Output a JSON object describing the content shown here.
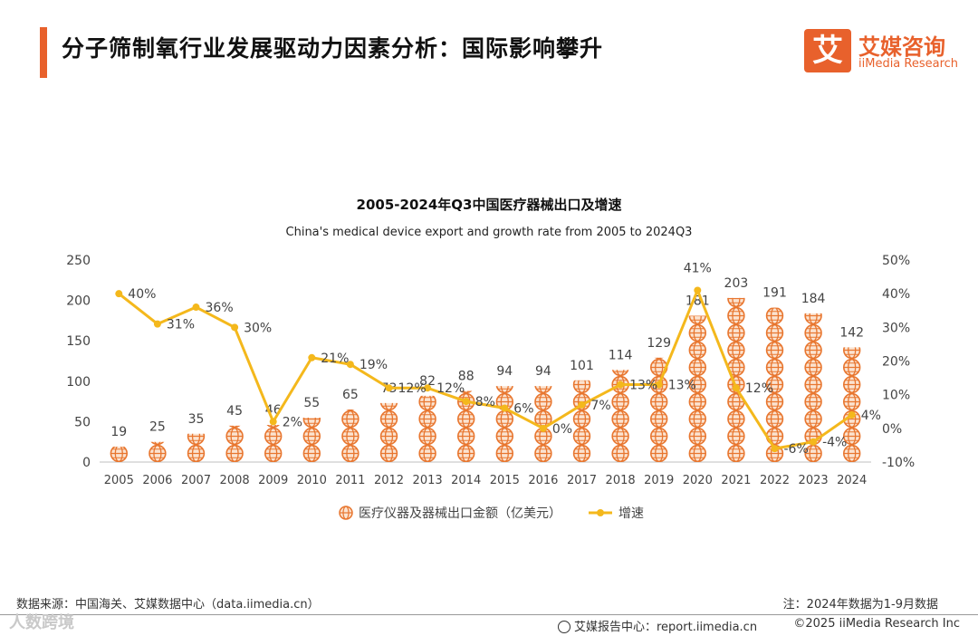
{
  "header": {
    "title": "分子筛制氧行业发展驱动力因素分析：国际影响攀升",
    "logo_mark": "艾",
    "logo_cn": "艾媒咨询",
    "logo_en": "iiMedia Research"
  },
  "chart_data": {
    "type": "bar",
    "title": "2005-2024年Q3中国医疗器械出口及增速",
    "subtitle": "China's medical device export and growth rate from 2005 to 2024Q3",
    "categories": [
      "2005",
      "2006",
      "2007",
      "2008",
      "2009",
      "2010",
      "2011",
      "2012",
      "2013",
      "2014",
      "2015",
      "2016",
      "2017",
      "2018",
      "2019",
      "2020",
      "2021",
      "2022",
      "2023",
      "2024"
    ],
    "series": [
      {
        "name": "医疗仪器及器械出口金额（亿美元）",
        "type": "bar",
        "axis": "left",
        "color": "#e8762f",
        "values": [
          19,
          25,
          35,
          45,
          46,
          55,
          65,
          73,
          82,
          88,
          94,
          94,
          101,
          114,
          129,
          181,
          203,
          191,
          184,
          142
        ]
      },
      {
        "name": "增速",
        "type": "line",
        "axis": "right",
        "color": "#f4b81c",
        "values": [
          40,
          31,
          36,
          30,
          2,
          21,
          19,
          12,
          12,
          8,
          6,
          0,
          7,
          13,
          13,
          41,
          12,
          -6,
          -4,
          4
        ],
        "labels": [
          "40%",
          "31%",
          "36%",
          "30%",
          "2%",
          "21%",
          "19%",
          "12%",
          "12%",
          "8%",
          "6%",
          "0%",
          "7%",
          "13%",
          "13%",
          "41%",
          "12%",
          "-6%",
          "-4%",
          "4%"
        ]
      }
    ],
    "y_left": {
      "min": 0,
      "max": 250,
      "ticks": [
        "0",
        "50",
        "100",
        "150",
        "200",
        "250"
      ]
    },
    "y_right": {
      "min": -10,
      "max": 50,
      "ticks": [
        "-10%",
        "0%",
        "10%",
        "20%",
        "30%",
        "40%",
        "50%"
      ]
    },
    "legend_position": "bottom",
    "grid": false
  },
  "footer": {
    "source": "数据来源：中国海关、艾媒数据中心（data.iimedia.cn）",
    "note": "注：2024年数据为1-9月数据",
    "report": "艾媒报告中心：report.iimedia.cn",
    "copyright": "©2025  iiMedia Research  Inc",
    "watermark": "人数跨境"
  }
}
